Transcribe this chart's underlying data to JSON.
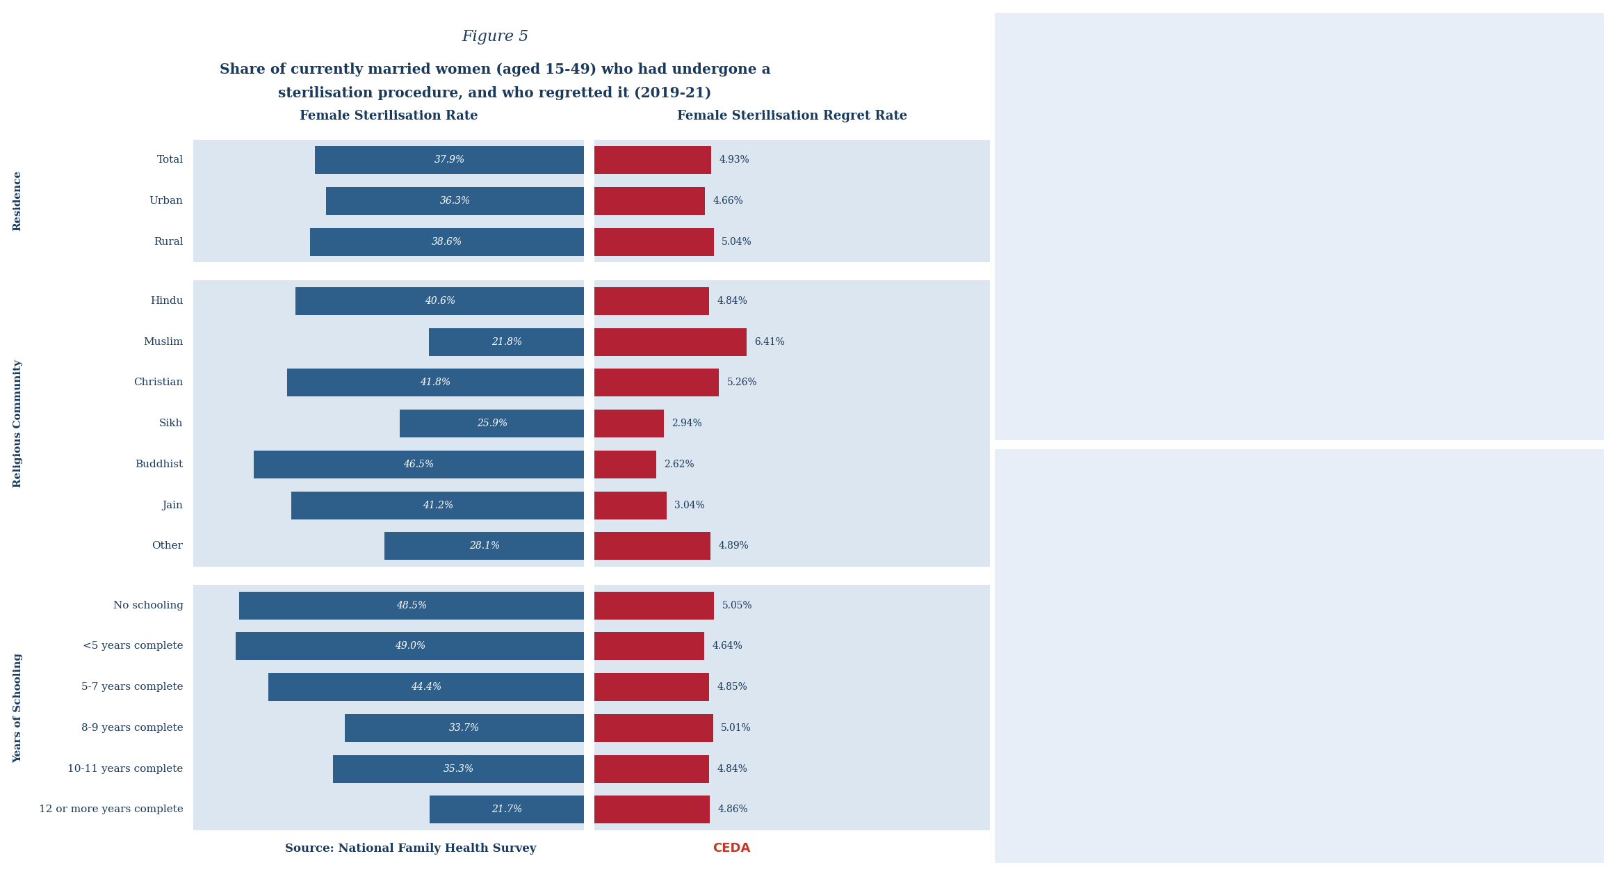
{
  "figure_label": "Figure 5",
  "title_line1": "Share of currently married women (aged 15-49) who had undergone a",
  "title_line2": "sterilisation procedure, and who regretted it (2019-21)",
  "col_header_left": "Female Sterilisation Rate",
  "col_header_right": "Female Sterilisation Regret Rate",
  "source": "Source: National Family Health Survey",
  "ceda_text": "CEDA",
  "groups": [
    {
      "group_label": "Residence",
      "rows": [
        {
          "label": "Total",
          "steril": 37.9,
          "regret": 4.93
        },
        {
          "label": "Urban",
          "steril": 36.3,
          "regret": 4.66
        },
        {
          "label": "Rural",
          "steril": 38.6,
          "regret": 5.04
        }
      ]
    },
    {
      "group_label": "Religious Community",
      "rows": [
        {
          "label": "Hindu",
          "steril": 40.6,
          "regret": 4.84
        },
        {
          "label": "Muslim",
          "steril": 21.8,
          "regret": 6.41
        },
        {
          "label": "Christian",
          "steril": 41.8,
          "regret": 5.26
        },
        {
          "label": "Sikh",
          "steril": 25.9,
          "regret": 2.94
        },
        {
          "label": "Buddhist",
          "steril": 46.5,
          "regret": 2.62
        },
        {
          "label": "Jain",
          "steril": 41.2,
          "regret": 3.04
        },
        {
          "label": "Other",
          "steril": 28.1,
          "regret": 4.89
        }
      ]
    },
    {
      "group_label": "Years of Schooling",
      "rows": [
        {
          "label": "No schooling",
          "steril": 48.5,
          "regret": 5.05
        },
        {
          "label": "<5 years complete",
          "steril": 49.0,
          "regret": 4.64
        },
        {
          "label": "5-7 years complete",
          "steril": 44.4,
          "regret": 4.85
        },
        {
          "label": "8-9 years complete",
          "steril": 33.7,
          "regret": 5.01
        },
        {
          "label": "10-11 years complete",
          "steril": 35.3,
          "regret": 4.84
        },
        {
          "label": "12 or more years complete",
          "steril": 21.7,
          "regret": 4.86
        }
      ]
    }
  ],
  "max_steril": 55.0,
  "max_regret": 10.0,
  "bar_color_steril": "#2e5f8a",
  "bar_color_regret": "#b22234",
  "bg_color": "#dce6f0",
  "label_color": "#1a3a5c",
  "header_color": "#1a3a5c",
  "title_color": "#1a3a5c",
  "text_on_bar_color": "#ffffff",
  "ceda_color": "#c0392b",
  "figure_bg": "#ffffff",
  "right_panel_bg": "#e8eef7"
}
